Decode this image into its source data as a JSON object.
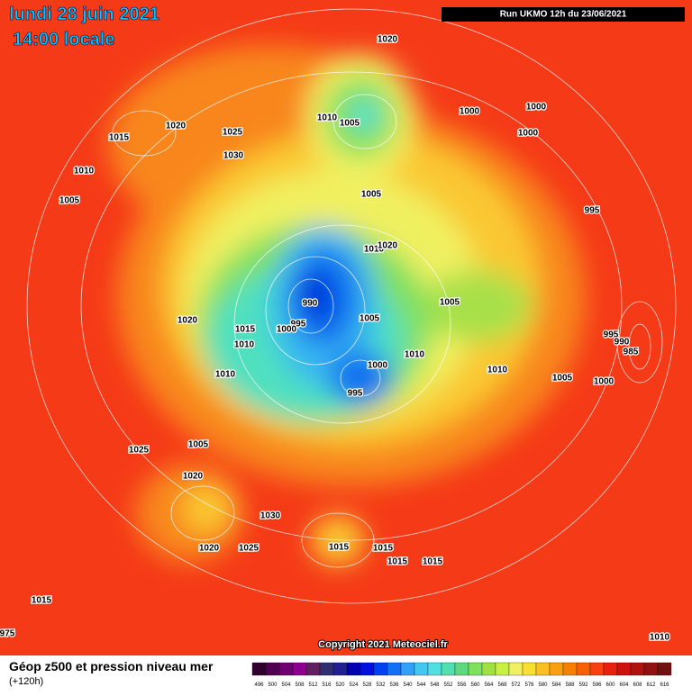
{
  "header": {
    "date": "lundi 28 juin 2021",
    "time": "14:00 locale",
    "run": "Run UKMO 12h du 23/06/2021"
  },
  "map": {
    "isobar_labels": [
      "1020",
      "1015",
      "1020",
      "1025",
      "1030",
      "1010",
      "1005",
      "1010",
      "1005",
      "1000",
      "1000",
      "1000",
      "1005",
      "995",
      "1010",
      "1020",
      "990",
      "995",
      "1000",
      "1005",
      "1005",
      "1020",
      "1015",
      "1010",
      "1010",
      "1000",
      "995",
      "1010",
      "1010",
      "1005",
      "1000",
      "995",
      "990",
      "985",
      "1025",
      "1005",
      "1020",
      "1030",
      "1020",
      "1025",
      "1015",
      "1015",
      "1015",
      "1015",
      "1015",
      "1010",
      "975"
    ]
  },
  "copyright": "Copyright 2021 Meteociel.fr",
  "footer": {
    "title": "Géop z500 et pression niveau mer",
    "subtitle": "(+120h)"
  },
  "legend": {
    "labels": [
      "496",
      "500",
      "504",
      "508",
      "512",
      "516",
      "520",
      "524",
      "528",
      "532",
      "536",
      "540",
      "544",
      "548",
      "552",
      "556",
      "560",
      "564",
      "568",
      "572",
      "576",
      "580",
      "584",
      "588",
      "592",
      "596",
      "600",
      "604",
      "608",
      "612",
      "616"
    ],
    "colors": [
      "#300030",
      "#500050",
      "#700070",
      "#900090",
      "#602060",
      "#303070",
      "#202090",
      "#0000b0",
      "#0010e0",
      "#0040f0",
      "#1070f8",
      "#30a0f8",
      "#40c8f0",
      "#50e0e0",
      "#50e0b0",
      "#60d880",
      "#80e060",
      "#a0e040",
      "#c8f040",
      "#f0f060",
      "#f8e030",
      "#f8c020",
      "#f8a010",
      "#f88000",
      "#f86000",
      "#f84010",
      "#e82010",
      "#d01010",
      "#b01010",
      "#901010",
      "#701010"
    ]
  }
}
